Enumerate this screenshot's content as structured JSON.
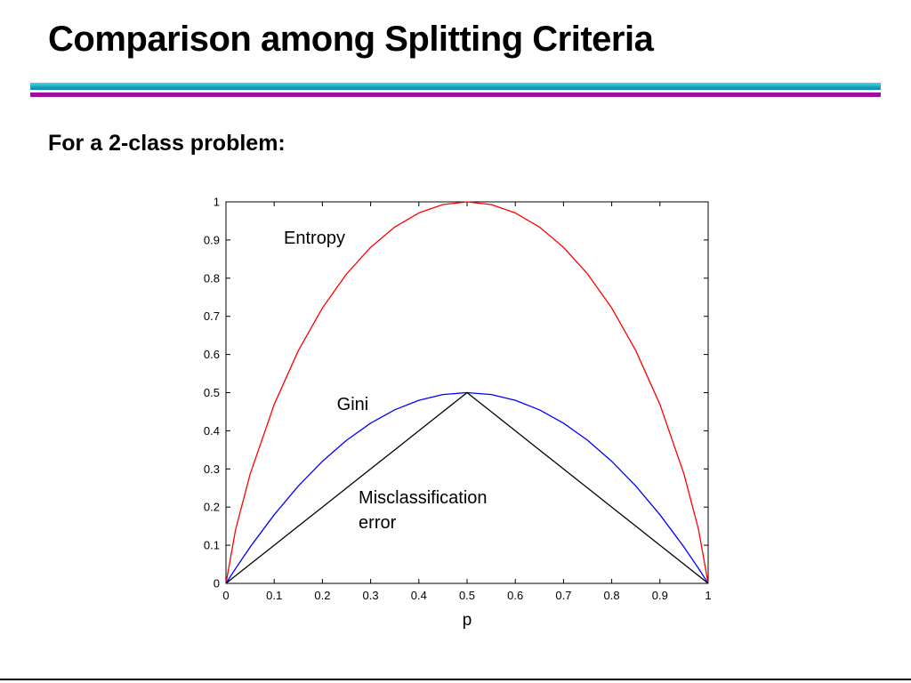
{
  "slide": {
    "title": "Comparison among Splitting Criteria",
    "subtitle": "For a 2-class problem:"
  },
  "colors": {
    "teal_rule": "#1aa7c4",
    "purple_rule": "#9b0fa1",
    "entropy": "#ff0000",
    "gini": "#0000ff",
    "misclassification": "#000000"
  },
  "chart_data": {
    "type": "line",
    "title": "",
    "xlabel": "p",
    "ylabel": "",
    "xlim": [
      0,
      1
    ],
    "ylim": [
      0,
      1
    ],
    "grid": false,
    "x_ticks": [
      "0",
      "0.1",
      "0.2",
      "0.3",
      "0.4",
      "0.5",
      "0.6",
      "0.7",
      "0.8",
      "0.9",
      "1"
    ],
    "y_ticks": [
      "0",
      "0.1",
      "0.2",
      "0.3",
      "0.4",
      "0.5",
      "0.6",
      "0.7",
      "0.8",
      "0.9",
      "1"
    ],
    "x": [
      0,
      0.02,
      0.05,
      0.1,
      0.15,
      0.2,
      0.25,
      0.3,
      0.35,
      0.4,
      0.45,
      0.5,
      0.55,
      0.6,
      0.65,
      0.7,
      0.75,
      0.8,
      0.85,
      0.9,
      0.95,
      0.98,
      1
    ],
    "series": [
      {
        "name": "Entropy",
        "color": "#ff0000",
        "values": [
          0,
          0.141,
          0.286,
          0.469,
          0.61,
          0.722,
          0.811,
          0.881,
          0.934,
          0.971,
          0.993,
          1,
          0.993,
          0.971,
          0.934,
          0.881,
          0.811,
          0.722,
          0.61,
          0.469,
          0.286,
          0.141,
          0
        ]
      },
      {
        "name": "Gini",
        "color": "#0000ff",
        "values": [
          0,
          0.039,
          0.095,
          0.18,
          0.255,
          0.32,
          0.375,
          0.42,
          0.455,
          0.48,
          0.495,
          0.5,
          0.495,
          0.48,
          0.455,
          0.42,
          0.375,
          0.32,
          0.255,
          0.18,
          0.095,
          0.039,
          0
        ]
      },
      {
        "name": "Misclassification error",
        "color": "#000000",
        "values": [
          0,
          0.02,
          0.05,
          0.1,
          0.15,
          0.2,
          0.25,
          0.3,
          0.35,
          0.4,
          0.45,
          0.5,
          0.45,
          0.4,
          0.35,
          0.3,
          0.25,
          0.2,
          0.15,
          0.1,
          0.05,
          0.02,
          0
        ]
      }
    ],
    "annotations": [
      {
        "series": "Entropy",
        "lines": [
          "Entropy"
        ],
        "x": 0.12,
        "y": 0.89
      },
      {
        "series": "Gini",
        "lines": [
          "Gini"
        ],
        "x": 0.23,
        "y": 0.455
      },
      {
        "series": "Misclassification error",
        "lines": [
          "Misclassification",
          "error"
        ],
        "x": 0.275,
        "y": 0.21
      }
    ]
  }
}
